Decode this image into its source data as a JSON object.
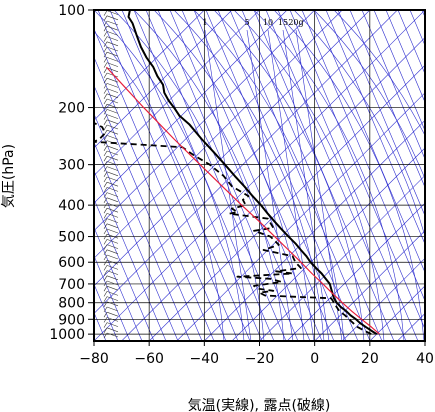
{
  "chart_data": {
    "type": "line",
    "chart_kind": "skew-t log-p sounding",
    "xlabel": "気温(実線), 露点(破線)",
    "ylabel": "気圧(hPa)",
    "x_axis": {
      "range": [
        -80,
        40
      ],
      "ticks": [
        -80,
        -60,
        -40,
        -20,
        0,
        20,
        40
      ],
      "tick_labels": [
        "−80",
        "−60",
        "−40",
        "−20",
        "0",
        "20",
        "40"
      ]
    },
    "y_axis": {
      "scale": "log",
      "range": [
        1050,
        100
      ],
      "ticks": [
        100,
        200,
        300,
        400,
        500,
        600,
        700,
        800,
        900,
        1000
      ],
      "tick_labels": [
        "100",
        "200",
        "300",
        "400",
        "500",
        "600",
        "700",
        "800",
        "900",
        "1000"
      ]
    },
    "mixing_ratio_labels": [
      "1",
      "5",
      "10",
      "15",
      "20g"
    ],
    "mixing_ratio_values": [
      1,
      5,
      10,
      15,
      20
    ],
    "colors": {
      "background_lines": "#3030d0",
      "parcel": "#e8203c",
      "profile": "#000000",
      "grid": "#000000"
    },
    "series": [
      {
        "role": "temperature",
        "style": "solid",
        "points": [
          [
            1000,
            22.5
          ],
          [
            975,
            20.5
          ],
          [
            950,
            18.5
          ],
          [
            925,
            16.5
          ],
          [
            900,
            15.0
          ],
          [
            875,
            13.0
          ],
          [
            850,
            11.5
          ],
          [
            825,
            9.5
          ],
          [
            800,
            8.0
          ],
          [
            775,
            7.0
          ],
          [
            750,
            6.5
          ],
          [
            725,
            6.0
          ],
          [
            700,
            5.5
          ],
          [
            675,
            4.0
          ],
          [
            650,
            2.5
          ],
          [
            625,
            0.5
          ],
          [
            600,
            -1.5
          ],
          [
            575,
            -3.0
          ],
          [
            550,
            -5.0
          ],
          [
            525,
            -7.0
          ],
          [
            500,
            -9.5
          ],
          [
            475,
            -12.0
          ],
          [
            450,
            -14.5
          ],
          [
            425,
            -17.0
          ],
          [
            400,
            -19.5
          ],
          [
            375,
            -22.5
          ],
          [
            350,
            -25.5
          ],
          [
            325,
            -29.0
          ],
          [
            300,
            -32.5
          ],
          [
            275,
            -36.5
          ],
          [
            250,
            -41.0
          ],
          [
            225,
            -45.5
          ],
          [
            212,
            -49.0
          ],
          [
            200,
            -51.0
          ],
          [
            190,
            -53.0
          ],
          [
            180,
            -54.5
          ],
          [
            170,
            -55.0
          ],
          [
            160,
            -57.0
          ],
          [
            150,
            -58.5
          ],
          [
            140,
            -61.0
          ],
          [
            130,
            -63.0
          ],
          [
            120,
            -64.5
          ],
          [
            110,
            -66.0
          ],
          [
            105,
            -67.5
          ],
          [
            100,
            -67.0
          ]
        ]
      },
      {
        "role": "dewpoint",
        "style": "dashed",
        "points": [
          [
            1000,
            20.5
          ],
          [
            975,
            18.0
          ],
          [
            950,
            15.5
          ],
          [
            925,
            14.0
          ],
          [
            900,
            12.5
          ],
          [
            875,
            11.0
          ],
          [
            850,
            9.0
          ],
          [
            825,
            8.0
          ],
          [
            800,
            7.0
          ],
          [
            775,
            6.0
          ],
          [
            760,
            -18.0
          ],
          [
            745,
            -20.0
          ],
          [
            735,
            -15.0
          ],
          [
            725,
            -20.0
          ],
          [
            710,
            -22.0
          ],
          [
            690,
            -12.0
          ],
          [
            675,
            -16.0
          ],
          [
            665,
            -28.0
          ],
          [
            650,
            -8.0
          ],
          [
            640,
            -14.0
          ],
          [
            625,
            -5.0
          ],
          [
            600,
            -7.0
          ],
          [
            575,
            -8.0
          ],
          [
            550,
            -18.5
          ],
          [
            530,
            -13.0
          ],
          [
            500,
            -16.0
          ],
          [
            480,
            -22.0
          ],
          [
            470,
            -15.0
          ],
          [
            440,
            -17.0
          ],
          [
            425,
            -31.0
          ],
          [
            420,
            -28.0
          ],
          [
            410,
            -30.0
          ],
          [
            400,
            -25.0
          ],
          [
            385,
            -26.0
          ],
          [
            375,
            -24.0
          ],
          [
            350,
            -30.0
          ],
          [
            325,
            -33.0
          ],
          [
            300,
            -38.0
          ],
          [
            280,
            -44.0
          ],
          [
            265,
            -48.0
          ],
          [
            255,
            -80.0
          ],
          [
            250,
            -78.0
          ],
          [
            240,
            -76.0
          ],
          [
            230,
            -77.0
          ],
          [
            225,
            -79.0
          ],
          [
            220,
            -82.0
          ]
        ]
      },
      {
        "role": "parcel",
        "style": "solid-red",
        "points": [
          [
            1000,
            23.5
          ],
          [
            950,
            20.5
          ],
          [
            900,
            17.0
          ],
          [
            850,
            13.5
          ],
          [
            800,
            10.0
          ],
          [
            750,
            6.5
          ],
          [
            700,
            3.0
          ],
          [
            650,
            -1.0
          ],
          [
            600,
            -5.0
          ],
          [
            550,
            -9.5
          ],
          [
            500,
            -14.5
          ],
          [
            450,
            -20.0
          ],
          [
            400,
            -26.5
          ],
          [
            350,
            -33.5
          ],
          [
            300,
            -41.5
          ],
          [
            250,
            -51.0
          ],
          [
            200,
            -62.0
          ],
          [
            150,
            -75.5
          ]
        ]
      }
    ]
  }
}
